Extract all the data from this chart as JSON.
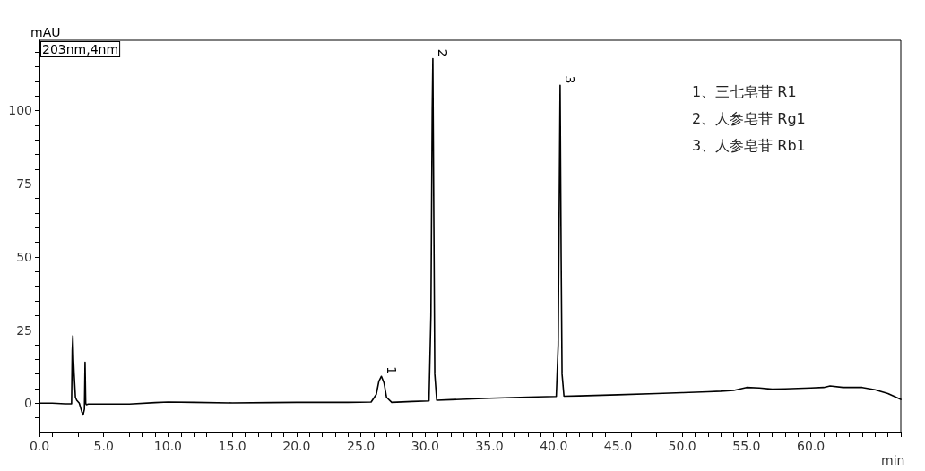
{
  "chart_data": {
    "type": "line",
    "xlabel": "min",
    "ylabel": "mAU",
    "annotations": [
      "203nm,4nm",
      "1、三七皂苷 R1",
      "2、人参皂苷 Rg1",
      "3、人参皂苷 Rb1",
      {
        "text": "1",
        "x": 26.6,
        "y": 9.2
      },
      {
        "text": "2",
        "x": 30.6,
        "y": 117.7
      },
      {
        "text": "3",
        "x": 40.5,
        "y": 108.6
      }
    ],
    "series": [
      {
        "color": "#000000",
        "x": [
          0,
          1,
          2,
          2.5,
          2.55,
          2.6,
          2.65,
          2.7,
          2.8,
          2.9,
          3.1,
          3.3,
          3.4,
          3.5,
          3.55,
          3.6,
          3.65,
          3.8,
          5,
          7,
          9,
          10,
          12,
          15,
          18,
          20,
          22,
          24,
          25.8,
          26.2,
          26.4,
          26.6,
          26.8,
          27.0,
          27.4,
          29,
          30.3,
          30.45,
          30.55,
          30.6,
          30.68,
          30.75,
          30.9,
          32,
          35,
          38,
          40.2,
          40.35,
          40.45,
          40.5,
          40.58,
          40.65,
          40.8,
          42,
          45,
          48,
          50,
          52,
          53,
          54,
          55,
          56,
          57,
          58,
          60,
          61,
          61.5,
          62.5,
          64,
          65,
          66,
          67
        ],
        "values": [
          0,
          0,
          -0.2,
          -0.2,
          18,
          23,
          15,
          10,
          2,
          1,
          0,
          -3,
          -4,
          -2,
          14,
          0,
          -0.5,
          -0.3,
          -0.3,
          -0.3,
          0.2,
          0.4,
          0.3,
          0.1,
          0.2,
          0.3,
          0.3,
          0.3,
          0.4,
          3,
          7.5,
          9.2,
          7,
          2,
          0.3,
          0.6,
          0.8,
          30,
          100,
          117.7,
          60,
          10,
          1,
          1.2,
          1.7,
          2.1,
          2.3,
          20,
          80,
          108.6,
          50,
          10,
          2.4,
          2.5,
          2.9,
          3.3,
          3.6,
          3.9,
          4.1,
          4.4,
          5.4,
          5.2,
          4.8,
          4.9,
          5.2,
          5.4,
          5.9,
          5.4,
          5.4,
          4.6,
          3.3,
          1.3
        ]
      }
    ],
    "xlim": [
      0,
      67
    ],
    "ylim": [
      -10,
      124
    ],
    "xticks": [
      {
        "value": 0,
        "label": "0.0"
      },
      {
        "value": 1,
        "label": null
      },
      {
        "value": 2,
        "label": null
      },
      {
        "value": 3,
        "label": null
      },
      {
        "value": 4,
        "label": null
      },
      {
        "value": 5,
        "label": "5.0"
      },
      {
        "value": 6,
        "label": null
      },
      {
        "value": 7,
        "label": null
      },
      {
        "value": 8,
        "label": null
      },
      {
        "value": 9,
        "label": null
      },
      {
        "value": 10,
        "label": "10.0"
      },
      {
        "value": 11,
        "label": null
      },
      {
        "value": 12,
        "label": null
      },
      {
        "value": 13,
        "label": null
      },
      {
        "value": 14,
        "label": null
      },
      {
        "value": 15,
        "label": "15.0"
      },
      {
        "value": 16,
        "label": null
      },
      {
        "value": 17,
        "label": null
      },
      {
        "value": 18,
        "label": null
      },
      {
        "value": 19,
        "label": null
      },
      {
        "value": 20,
        "label": "20.0"
      },
      {
        "value": 21,
        "label": null
      },
      {
        "value": 22,
        "label": null
      },
      {
        "value": 23,
        "label": null
      },
      {
        "value": 24,
        "label": null
      },
      {
        "value": 25,
        "label": "25.0"
      },
      {
        "value": 26,
        "label": null
      },
      {
        "value": 27,
        "label": null
      },
      {
        "value": 28,
        "label": null
      },
      {
        "value": 29,
        "label": null
      },
      {
        "value": 30,
        "label": "30.0"
      },
      {
        "value": 31,
        "label": null
      },
      {
        "value": 32,
        "label": null
      },
      {
        "value": 33,
        "label": null
      },
      {
        "value": 34,
        "label": null
      },
      {
        "value": 35,
        "label": "35.0"
      },
      {
        "value": 36,
        "label": null
      },
      {
        "value": 37,
        "label": null
      },
      {
        "value": 38,
        "label": null
      },
      {
        "value": 39,
        "label": null
      },
      {
        "value": 40,
        "label": "40.0"
      },
      {
        "value": 41,
        "label": null
      },
      {
        "value": 42,
        "label": null
      },
      {
        "value": 43,
        "label": null
      },
      {
        "value": 44,
        "label": null
      },
      {
        "value": 45,
        "label": "45.0"
      },
      {
        "value": 46,
        "label": null
      },
      {
        "value": 47,
        "label": null
      },
      {
        "value": 48,
        "label": null
      },
      {
        "value": 49,
        "label": null
      },
      {
        "value": 50,
        "label": "50.0"
      },
      {
        "value": 51,
        "label": null
      },
      {
        "value": 52,
        "label": null
      },
      {
        "value": 53,
        "label": null
      },
      {
        "value": 54,
        "label": null
      },
      {
        "value": 55,
        "label": "55.0"
      },
      {
        "value": 56,
        "label": null
      },
      {
        "value": 57,
        "label": null
      },
      {
        "value": 58,
        "label": null
      },
      {
        "value": 59,
        "label": null
      },
      {
        "value": 60,
        "label": "60.0"
      },
      {
        "value": 61,
        "label": null
      },
      {
        "value": 62,
        "label": null
      },
      {
        "value": 63,
        "label": null
      },
      {
        "value": 64,
        "label": null
      },
      {
        "value": 65,
        "label": null
      },
      {
        "value": 66,
        "label": null
      },
      {
        "value": 67,
        "label": null
      }
    ],
    "yticks": [
      {
        "value": -5,
        "label": null
      },
      0,
      {
        "value": 5,
        "label": null
      },
      {
        "value": 10,
        "label": null
      },
      {
        "value": 15,
        "label": null
      },
      {
        "value": 20,
        "label": null
      },
      25,
      {
        "value": 30,
        "label": null
      },
      {
        "value": 35,
        "label": null
      },
      {
        "value": 40,
        "label": null
      },
      {
        "value": 45,
        "label": null
      },
      50,
      {
        "value": 55,
        "label": null
      },
      {
        "value": 60,
        "label": null
      },
      {
        "value": 65,
        "label": null
      },
      {
        "value": 70,
        "label": null
      },
      75,
      {
        "value": 80,
        "label": null
      },
      {
        "value": 85,
        "label": null
      },
      {
        "value": 90,
        "label": null
      },
      {
        "value": 95,
        "label": null
      },
      100,
      {
        "value": 105,
        "label": null
      },
      {
        "value": 110,
        "label": null
      },
      {
        "value": 115,
        "label": null
      },
      {
        "value": 120,
        "label": null
      }
    ],
    "grid": false,
    "marker": "none",
    "line_style": "solid"
  }
}
